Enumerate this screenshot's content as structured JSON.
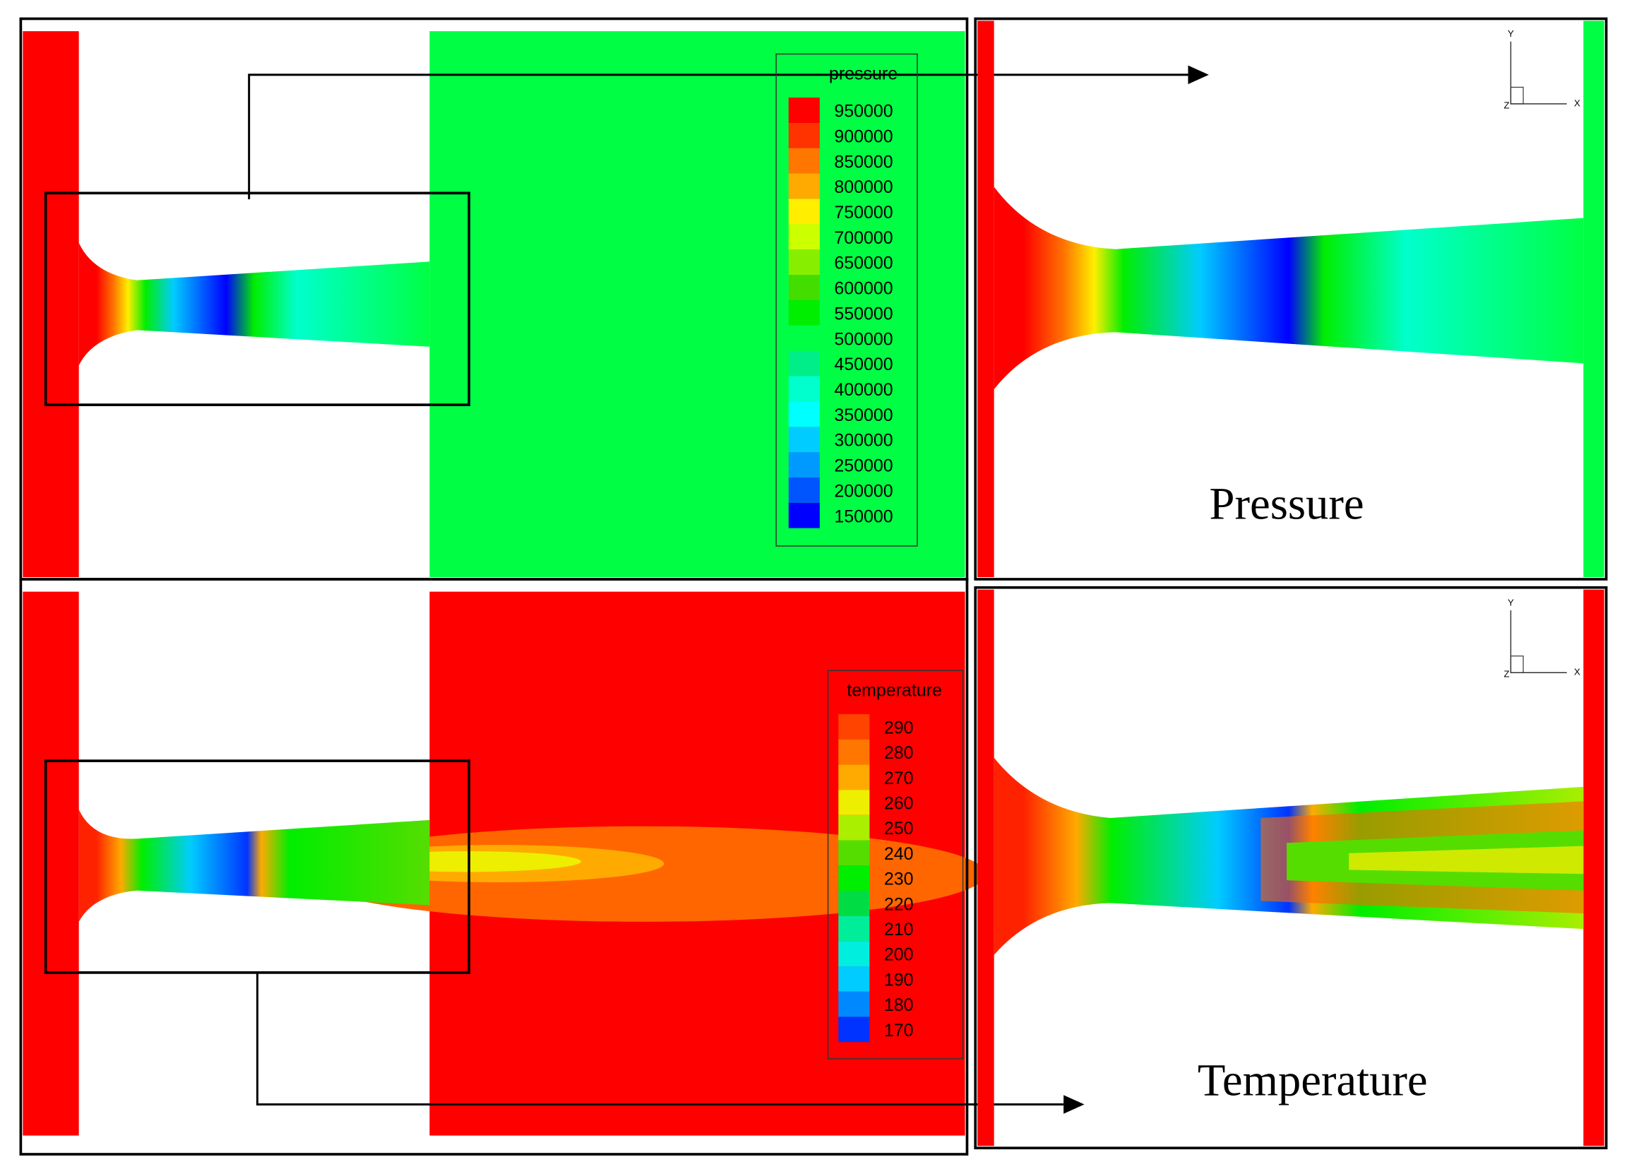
{
  "pressure_legend": {
    "title": "pressure",
    "levels": [
      {
        "value": 950000,
        "color": "#ff0000"
      },
      {
        "value": 900000,
        "color": "#ff3300"
      },
      {
        "value": 850000,
        "color": "#ff7700"
      },
      {
        "value": 800000,
        "color": "#ffaa00"
      },
      {
        "value": 750000,
        "color": "#ffee00"
      },
      {
        "value": 700000,
        "color": "#ccff00"
      },
      {
        "value": 650000,
        "color": "#88ee00"
      },
      {
        "value": 600000,
        "color": "#44dd00"
      },
      {
        "value": 550000,
        "color": "#00ee00"
      },
      {
        "value": 500000,
        "color": "#00ff44"
      },
      {
        "value": 450000,
        "color": "#00ee88"
      },
      {
        "value": 400000,
        "color": "#00ffcc"
      },
      {
        "value": 350000,
        "color": "#00ffff"
      },
      {
        "value": 300000,
        "color": "#00ccff"
      },
      {
        "value": 250000,
        "color": "#0099ff"
      },
      {
        "value": 200000,
        "color": "#0055ff"
      },
      {
        "value": 150000,
        "color": "#0000ff"
      }
    ]
  },
  "temperature_legend": {
    "title": "temperature",
    "levels": [
      {
        "value": 290,
        "color": "#ff4400"
      },
      {
        "value": 280,
        "color": "#ff7700"
      },
      {
        "value": 270,
        "color": "#ffaa00"
      },
      {
        "value": 260,
        "color": "#eeee00"
      },
      {
        "value": 250,
        "color": "#aaee00"
      },
      {
        "value": 240,
        "color": "#55dd00"
      },
      {
        "value": 230,
        "color": "#00ee00"
      },
      {
        "value": 220,
        "color": "#00dd44"
      },
      {
        "value": 210,
        "color": "#00ee99"
      },
      {
        "value": 200,
        "color": "#00eedd"
      },
      {
        "value": 190,
        "color": "#00ccff"
      },
      {
        "value": 180,
        "color": "#0088ff"
      },
      {
        "value": 170,
        "color": "#0033ff"
      }
    ]
  },
  "panels": {
    "pressure_zoom": {
      "label": "Pressure"
    },
    "temperature_zoom": {
      "label": "Temperature"
    }
  },
  "axes_triad": {
    "y": "Y",
    "x": "X",
    "z": "Z"
  }
}
